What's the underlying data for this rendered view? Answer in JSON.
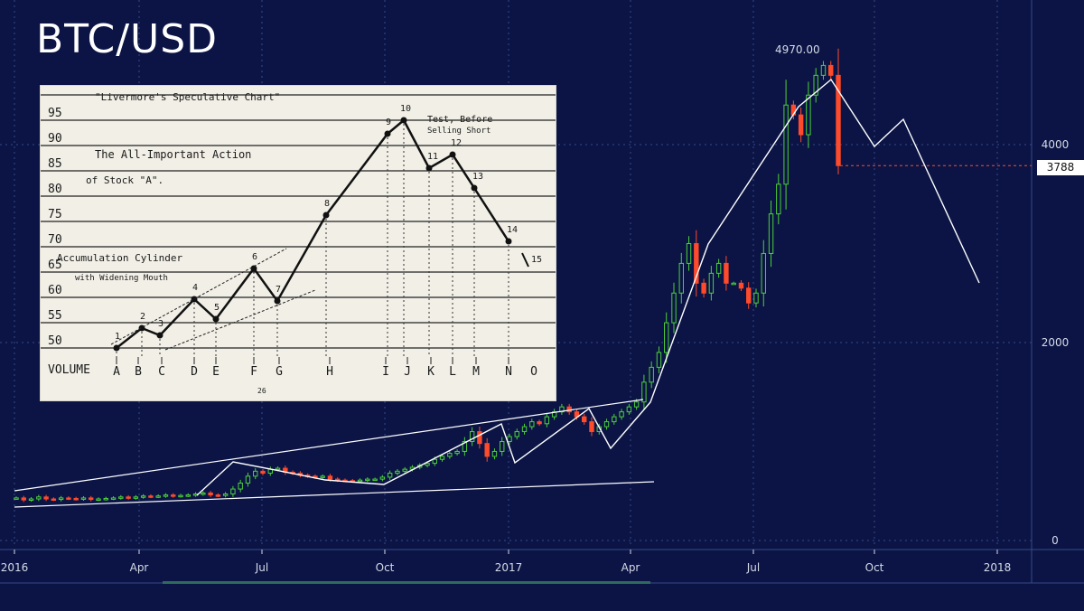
{
  "header": {
    "title": "BTC/USD"
  },
  "chart_data": {
    "type": "candlestick",
    "title": "BTC/USD",
    "x_ticks": [
      "2016",
      "Apr",
      "Jul",
      "Oct",
      "2017",
      "Apr",
      "Jul",
      "Oct",
      "2018"
    ],
    "y_ticks": [
      0,
      2000,
      4000
    ],
    "ylim": [
      0,
      5500
    ],
    "grid": true,
    "peak_label": "4970.00",
    "last_price_label": "3788",
    "last_price": 3788,
    "colors": {
      "up": "#4cd137",
      "down": "#ff4b2b",
      "line": "#ffffff",
      "grid": "#3a4a86"
    }
  },
  "inset": {
    "title": "\"Livermore's Speculative Chart\"",
    "subtitle_1": "The All-Important Action",
    "subtitle_2": "of Stock \"A\".",
    "label_1": "Accumulation Cylinder",
    "label_2": "with Widening Mouth",
    "label_3": "Test, Before",
    "label_4": "Selling Short",
    "volume_label": "VOLUME",
    "price_levels": [
      "95",
      "90",
      "85",
      "80",
      "75",
      "70",
      "65",
      "60",
      "55",
      "50"
    ],
    "x_letters": [
      "A",
      "B",
      "C",
      "D",
      "E",
      "F",
      "G",
      "H",
      "I",
      "J",
      "K",
      "L",
      "M",
      "N",
      "O"
    ],
    "points": [
      "1",
      "2",
      "3",
      "4",
      "5",
      "6",
      "7",
      "8",
      "9",
      "10",
      "11",
      "12",
      "13",
      "14",
      "15"
    ],
    "page_number": "26"
  }
}
